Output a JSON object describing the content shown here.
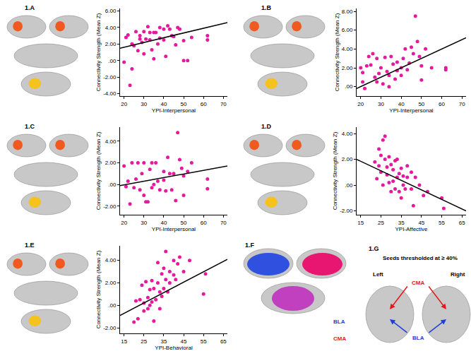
{
  "chart_data": [
    {
      "type": "scatter",
      "title": "1.A",
      "xlabel": "YPI-Interpersonal",
      "ylabel": "Connectivity Strength (Mean Z)",
      "xlim": [
        18,
        72
      ],
      "ylim": [
        -4.3,
        6.3
      ],
      "xticks": [
        20,
        30,
        40,
        50,
        60,
        70
      ],
      "yticks": [
        {
          "value": -4,
          "label": "-4.00"
        },
        {
          "value": -2,
          "label": "-2.00"
        },
        {
          "value": 0,
          "label": ".00"
        },
        {
          "value": 2,
          "label": "2.00"
        },
        {
          "value": 4,
          "label": "4.00"
        },
        {
          "value": 6,
          "label": "6.00"
        }
      ],
      "grid": false,
      "series": [
        {
          "type": "scatter",
          "marker": "circle",
          "color": "#e6189e",
          "x": [
            20,
            21,
            22,
            23,
            24,
            24,
            25,
            26,
            27,
            28,
            28,
            29,
            30,
            30,
            31,
            32,
            33,
            33,
            34,
            35,
            35,
            36,
            37,
            38,
            38,
            40,
            40,
            41,
            42,
            43,
            44,
            45,
            46,
            47,
            48,
            50,
            50,
            52,
            54,
            62,
            62
          ],
          "y": [
            -0.2,
            2.8,
            3.1,
            -3.0,
            -1.0,
            2.0,
            1.8,
            3.5,
            1.2,
            2.6,
            3.0,
            2.2,
            0.8,
            3.5,
            2.6,
            4.1,
            2.5,
            3.4,
            1.3,
            3.4,
            0.2,
            3.4,
            2.0,
            2.7,
            4.0,
            3.8,
            2.5,
            0.5,
            4.2,
            3.8,
            3.0,
            2.9,
            1.9,
            4.0,
            3.8,
            0.0,
            2.4,
            0.0,
            2.8,
            3.0,
            2.5
          ]
        },
        {
          "type": "line",
          "line_style": "solid",
          "color": "#000000",
          "x": [
            18,
            72
          ],
          "y": [
            1.5,
            4.6
          ]
        }
      ]
    },
    {
      "type": "scatter",
      "title": "1.B",
      "xlabel": "YPI-Interpersonal",
      "ylabel": "Connectivity Strength (Mean Z)",
      "xlim": [
        18,
        72
      ],
      "ylim": [
        -1,
        8.3
      ],
      "xticks": [
        20,
        30,
        40,
        50,
        60,
        70
      ],
      "yticks": [
        {
          "value": 0,
          "label": ".00"
        },
        {
          "value": 2,
          "label": "2.00"
        },
        {
          "value": 4,
          "label": "4.00"
        },
        {
          "value": 6,
          "label": "6.00"
        },
        {
          "value": 8,
          "label": "8.00"
        }
      ],
      "grid": false,
      "series": [
        {
          "type": "scatter",
          "marker": "circle",
          "color": "#e6189e",
          "x": [
            20,
            21,
            21,
            22,
            23,
            24,
            25,
            26,
            27,
            28,
            28,
            29,
            30,
            31,
            32,
            33,
            34,
            34,
            35,
            36,
            37,
            38,
            38,
            40,
            40,
            41,
            42,
            43,
            44,
            45,
            46,
            47,
            48,
            49,
            50,
            50,
            52,
            55,
            62,
            62
          ],
          "y": [
            2.0,
            0.5,
            1.5,
            -0.2,
            2.2,
            3.2,
            2.3,
            3.5,
            1.0,
            3.0,
            0.5,
            1.4,
            2.0,
            0.3,
            3.1,
            1.6,
            1.2,
            0.0,
            3.2,
            2.4,
            0.8,
            2.6,
            1.7,
            2.0,
            1.2,
            3.0,
            4.0,
            1.8,
            2.5,
            4.2,
            3.5,
            7.5,
            4.8,
            3.2,
            2.2,
            0.7,
            4.0,
            2.0,
            2.0,
            1.8
          ]
        },
        {
          "type": "line",
          "line_style": "solid",
          "color": "#000000",
          "x": [
            18,
            72
          ],
          "y": [
            -0.2,
            5.2
          ]
        }
      ]
    },
    {
      "type": "scatter",
      "title": "1.C",
      "xlabel": "YPI-Interpersonal",
      "ylabel": "Connectivity Strength (Mean Z)",
      "xlim": [
        18,
        72
      ],
      "ylim": [
        -2.8,
        5.3
      ],
      "xticks": [
        20,
        30,
        40,
        50,
        60,
        70
      ],
      "yticks": [
        {
          "value": -2,
          "label": "-2.00"
        },
        {
          "value": 0,
          "label": ".00"
        },
        {
          "value": 2,
          "label": "2.00"
        },
        {
          "value": 4,
          "label": "4.00"
        }
      ],
      "grid": false,
      "series": [
        {
          "type": "scatter",
          "marker": "circle",
          "color": "#e6189e",
          "x": [
            20,
            21,
            22,
            23,
            24,
            25,
            26,
            27,
            28,
            29,
            30,
            30,
            31,
            32,
            33,
            34,
            34,
            35,
            36,
            37,
            38,
            40,
            40,
            41,
            42,
            43,
            44,
            45,
            46,
            47,
            48,
            49,
            50,
            50,
            52,
            54,
            62,
            62
          ],
          "y": [
            1.7,
            -0.2,
            0.3,
            -1.8,
            2.0,
            -0.3,
            0.5,
            2.0,
            -0.5,
            1.0,
            2.0,
            -1.0,
            -1.6,
            -1.6,
            1.4,
            2.0,
            -0.3,
            0.0,
            2.0,
            0.3,
            -0.5,
            1.2,
            0.4,
            -0.6,
            2.5,
            1.0,
            -0.5,
            1.0,
            -1.5,
            4.8,
            2.3,
            1.5,
            -1.0,
            0.8,
            1.2,
            2.0,
            0.5,
            -0.4
          ]
        },
        {
          "type": "line",
          "line_style": "solid",
          "color": "#000000",
          "x": [
            18,
            72
          ],
          "y": [
            -0.1,
            1.7
          ]
        }
      ]
    },
    {
      "type": "scatter",
      "title": "1.D",
      "xlabel": "YPI-Affective",
      "ylabel": "Connectivity Strength (Mean Z)",
      "xlim": [
        13,
        67
      ],
      "ylim": [
        -2.3,
        4.5
      ],
      "xticks": [
        15,
        25,
        35,
        45,
        55,
        65
      ],
      "yticks": [
        {
          "value": -2,
          "label": "-2.00"
        },
        {
          "value": 0,
          "label": ".00"
        },
        {
          "value": 2,
          "label": "2.00"
        },
        {
          "value": 4,
          "label": "4.00"
        }
      ],
      "grid": false,
      "series": [
        {
          "type": "scatter",
          "marker": "circle",
          "color": "#e6189e",
          "x": [
            22,
            23,
            24,
            24,
            25,
            25,
            26,
            26,
            27,
            27,
            28,
            28,
            29,
            29,
            30,
            30,
            31,
            31,
            32,
            32,
            33,
            33,
            34,
            34,
            35,
            35,
            36,
            36,
            37,
            38,
            38,
            40,
            40,
            41,
            42,
            44,
            46,
            48,
            55,
            56
          ],
          "y": [
            1.8,
            0.5,
            1.5,
            2.8,
            1.0,
            2.3,
            3.5,
            0.0,
            2.0,
            3.8,
            0.8,
            1.4,
            2.2,
            0.2,
            1.6,
            -0.5,
            1.2,
            0.3,
            1.9,
            -0.3,
            2.0,
            0.6,
            0.9,
            -0.5,
            1.3,
            -1.0,
            0.0,
            0.7,
            -0.3,
            0.6,
            1.5,
            1.0,
            -0.3,
            -1.6,
            0.6,
            0.0,
            -0.8,
            -0.5,
            -1.0,
            -1.8
          ]
        },
        {
          "type": "line",
          "line_style": "solid",
          "color": "#000000",
          "x": [
            13,
            67
          ],
          "y": [
            2.0,
            -2.0
          ]
        }
      ]
    },
    {
      "type": "scatter",
      "title": "1.E",
      "xlabel": "YPI-Behavioral",
      "ylabel": "Connectivity Strength (Mean Z)",
      "xlim": [
        13,
        67
      ],
      "ylim": [
        -2.5,
        5.3
      ],
      "xticks": [
        15,
        25,
        35,
        45,
        55,
        65
      ],
      "yticks": [
        {
          "value": -2,
          "label": "-2.00"
        },
        {
          "value": 0,
          "label": ".00"
        },
        {
          "value": 2,
          "label": "2.00"
        },
        {
          "value": 4,
          "label": "4.00"
        }
      ],
      "grid": false,
      "series": [
        {
          "type": "scatter",
          "marker": "circle",
          "color": "#e6189e",
          "x": [
            20,
            21,
            22,
            23,
            24,
            25,
            25,
            26,
            27,
            27,
            28,
            28,
            29,
            29,
            30,
            30,
            31,
            32,
            32,
            33,
            33,
            34,
            34,
            35,
            35,
            36,
            36,
            37,
            38,
            38,
            40,
            40,
            41,
            42,
            43,
            45,
            48,
            55,
            56
          ],
          "y": [
            -1.5,
            0.4,
            -1.2,
            0.5,
            1.8,
            0.2,
            -0.5,
            2.1,
            0.7,
            -0.3,
            1.4,
            0.0,
            2.2,
            0.3,
            1.5,
            -1.4,
            0.5,
            2.0,
            3.8,
            1.2,
            -0.3,
            2.8,
            0.8,
            3.3,
            1.5,
            2.3,
            4.8,
            1.2,
            3.0,
            2.0,
            4.0,
            2.7,
            2.3,
            3.7,
            4.3,
            3.0,
            4.0,
            1.0,
            2.8
          ]
        },
        {
          "type": "line",
          "line_style": "solid",
          "color": "#000000",
          "x": [
            13,
            67
          ],
          "y": [
            -0.9,
            4.1
          ]
        }
      ]
    }
  ],
  "brain_panels": [
    {
      "label": "1.F",
      "texts": [
        {
          "text": "BLA",
          "color": "#1f3fd6"
        },
        {
          "text": "CMA",
          "color": "#e8161b"
        }
      ]
    },
    {
      "label": "1.G",
      "title": "Seeds thresholded at ≥ 40%",
      "texts": [
        {
          "text": "Left",
          "color": "#000000"
        },
        {
          "text": "Right",
          "color": "#000000"
        },
        {
          "text": "CMA",
          "color": "#e8161b"
        },
        {
          "text": "BLA",
          "color": "#1f3fd6"
        }
      ]
    }
  ]
}
